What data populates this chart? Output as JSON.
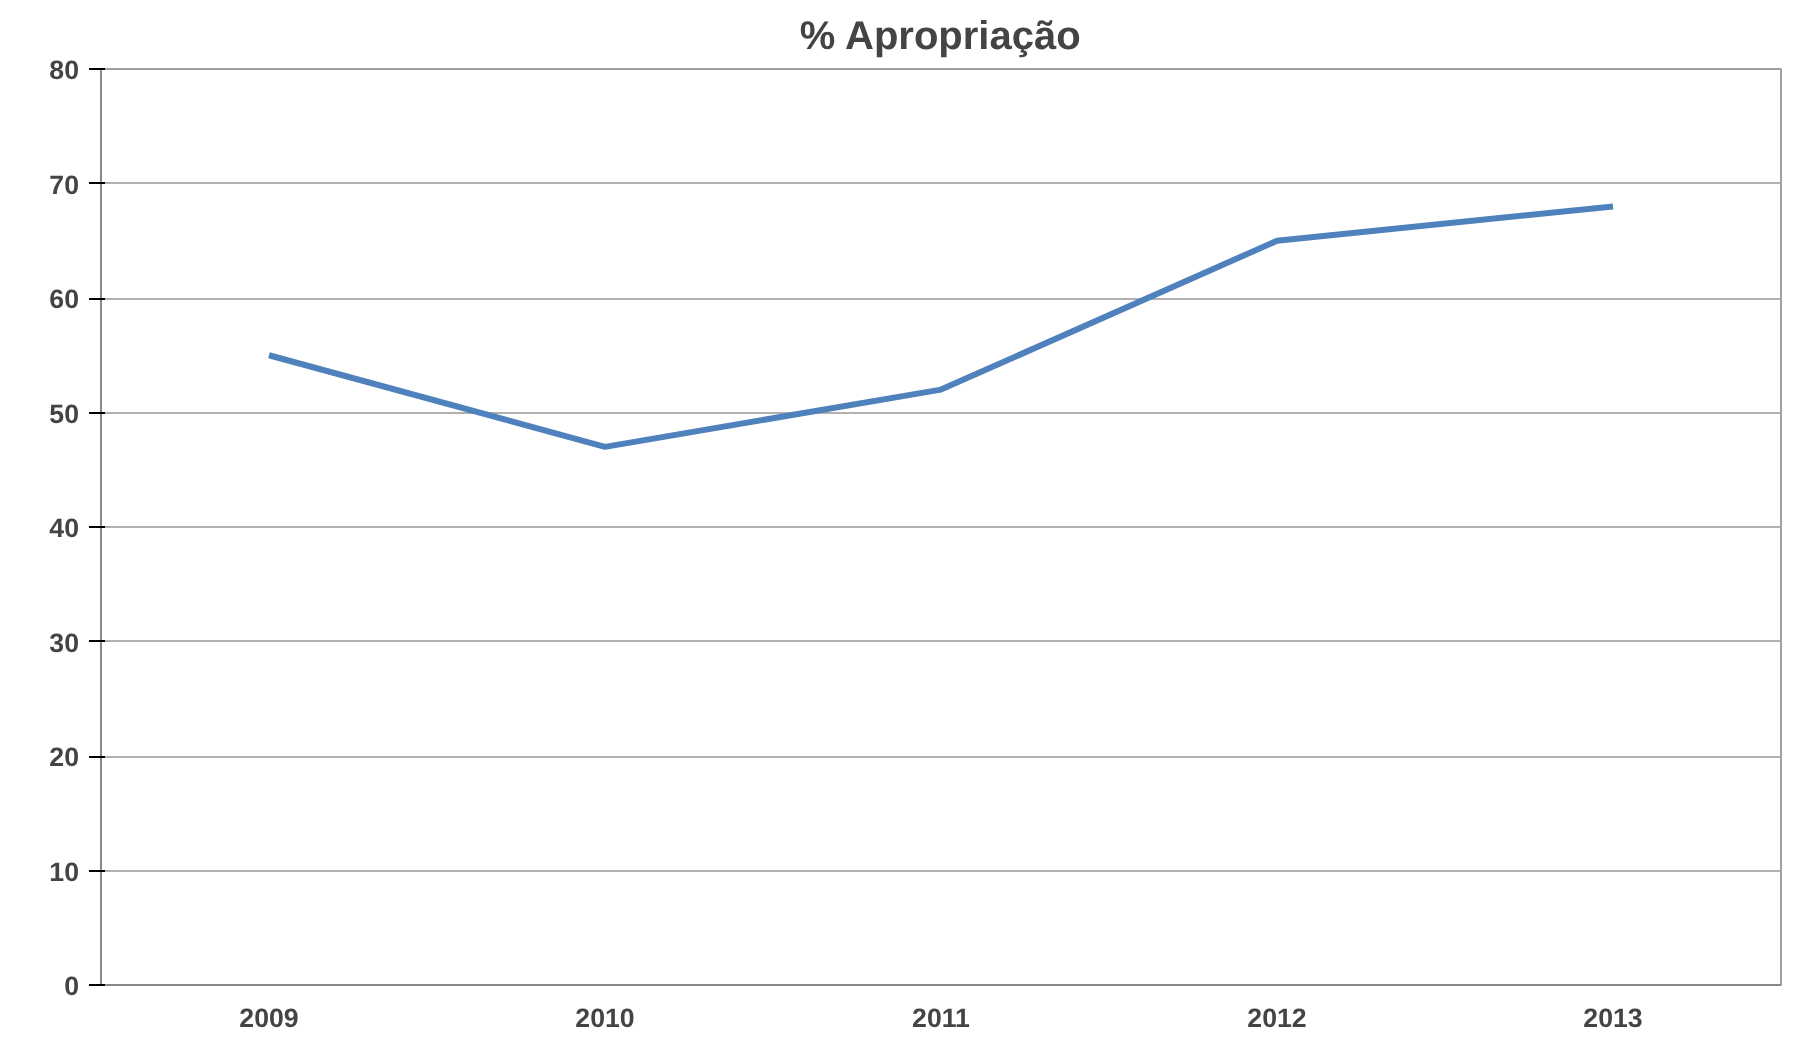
{
  "chart_data": {
    "type": "line",
    "title": "% Apropriação",
    "categories": [
      "2009",
      "2010",
      "2011",
      "2012",
      "2013"
    ],
    "series": [
      {
        "color": "#4f81bd",
        "values": [
          55,
          47,
          52,
          65,
          68
        ]
      }
    ],
    "ylim": [
      0,
      80
    ],
    "yticks": [
      0,
      10,
      20,
      30,
      40,
      50,
      60,
      70,
      80
    ],
    "grid": "y",
    "marker": "none",
    "line_style": "solid"
  }
}
